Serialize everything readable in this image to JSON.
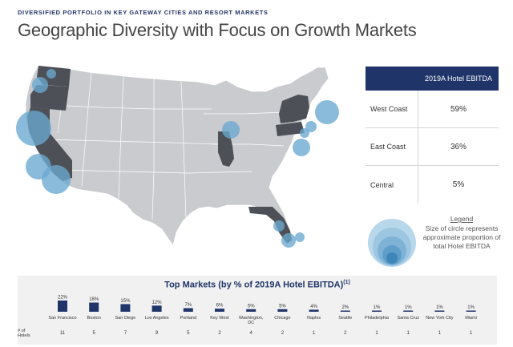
{
  "header": {
    "kicker": "DIVERSIFIED PORTFOLIO IN KEY GATEWAY CITIES AND RESORT MARKETS",
    "title": "Geographic Diversity with Focus on Growth Markets"
  },
  "colors": {
    "navy": "#1f3468",
    "map_gray": "#c9cbce",
    "highlight_state": "#4d5157",
    "bubble": "#6aa8cf",
    "panel_bg": "#f1f1f1"
  },
  "region_table": {
    "header": "2019A Hotel EBITDA",
    "rows": [
      {
        "region": "West Coast",
        "value": "59%"
      },
      {
        "region": "East Coast",
        "value": "36%"
      },
      {
        "region": "Central",
        "value": "5%"
      }
    ]
  },
  "legend": {
    "title": "Legend",
    "text": "Size of circle represents approximate proportion of total Hotel EBITDA"
  },
  "chart_data": {
    "type": "bar",
    "title": "Top Markets (by % of 2019A Hotel EBITDA)",
    "footnote": "(1)",
    "categories": [
      "San Francisco",
      "Boston",
      "San Diego",
      "Los Angeles",
      "Portland",
      "Key West",
      "Washington, DC",
      "Chicago",
      "Naples",
      "Seattle",
      "Philadelphia",
      "Santa Cruz",
      "New York City",
      "Miami"
    ],
    "values": [
      22,
      18,
      15,
      12,
      7,
      6,
      5,
      5,
      4,
      2,
      1,
      1,
      1,
      1
    ],
    "value_labels": [
      "22%",
      "18%",
      "15%",
      "12%",
      "7%",
      "6%",
      "5%",
      "5%",
      "4%",
      "2%",
      "1%",
      "1%",
      "1%",
      "1%"
    ],
    "hotels_label": "# of Hotels",
    "hotels": [
      "11",
      "5",
      "7",
      "9",
      "5",
      "2",
      "4",
      "2",
      "1",
      "2",
      "1",
      "1",
      "1",
      "1"
    ]
  }
}
